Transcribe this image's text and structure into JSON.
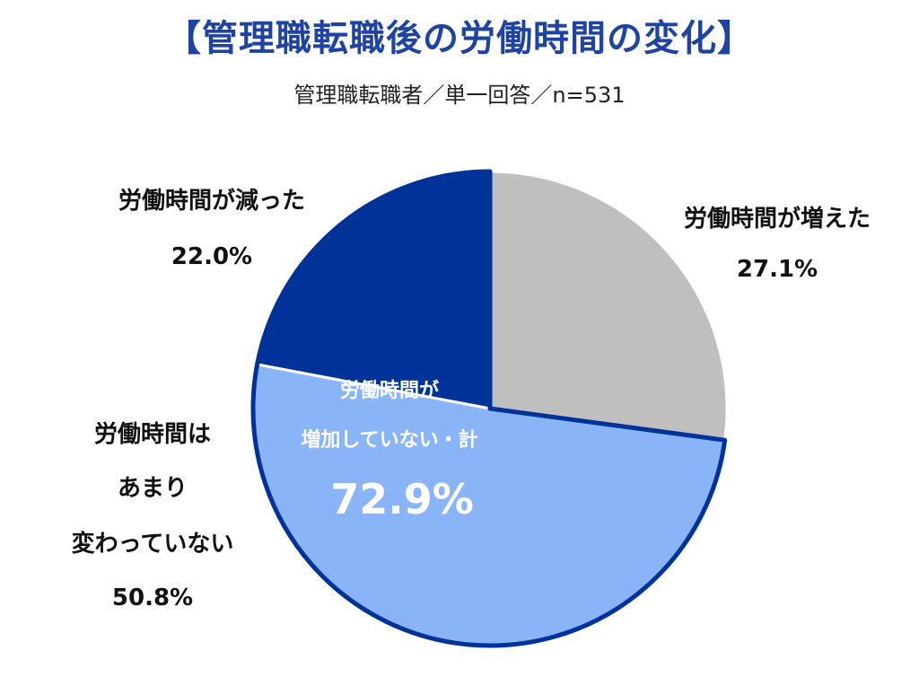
{
  "title": "【管理職転職後の労働時間の変化】",
  "subtitle": "管理職転職者／単一回答／n=531",
  "chart_data": {
    "type": "pie",
    "title": "【管理職転職後の労働時間の変化】",
    "subtitle": "管理職転職者／単一回答／n=531",
    "slices": [
      {
        "label": "労働時間が増えた",
        "label_lines": [
          "労働時間が増えた"
        ],
        "value": 27.1,
        "value_label": "27.1%",
        "color": "#bfbfbf"
      },
      {
        "label": "労働時間はあまり変わっていない",
        "label_lines": [
          "労働時間は",
          "あまり",
          "変わっていない"
        ],
        "value": 50.8,
        "value_label": "50.8%",
        "color": "#8ab4f8"
      },
      {
        "label": "労働時間が減った",
        "label_lines": [
          "労働時間が減った"
        ],
        "value": 22.0,
        "value_label": "22.0%",
        "color": "#003399"
      }
    ],
    "annotation": {
      "lines": [
        "労働時間が",
        "増加していない・計"
      ],
      "value_label": "72.9%"
    }
  }
}
